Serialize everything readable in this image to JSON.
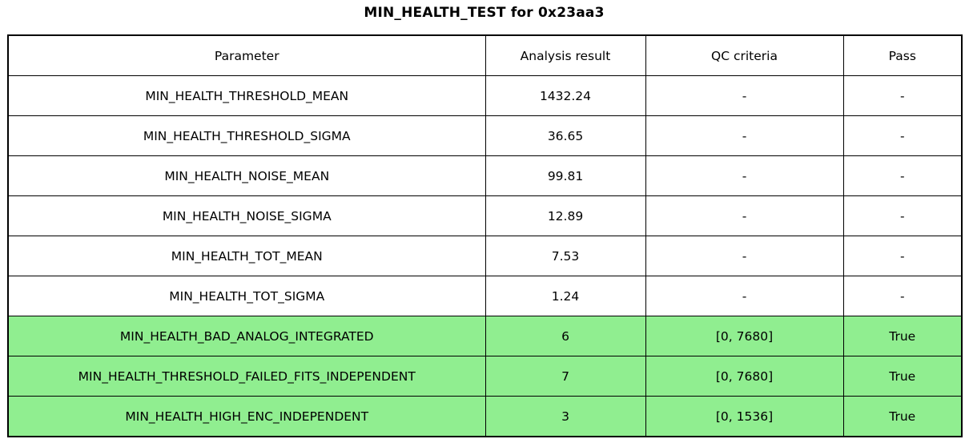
{
  "title": "MIN_HEALTH_TEST for 0x23aa3",
  "table": {
    "headers": [
      "Parameter",
      "Analysis result",
      "QC criteria",
      "Pass"
    ],
    "rows": [
      {
        "parameter": "MIN_HEALTH_THRESHOLD_MEAN",
        "result": "1432.24",
        "qc": "-",
        "pass": "-",
        "highlight": false
      },
      {
        "parameter": "MIN_HEALTH_THRESHOLD_SIGMA",
        "result": "36.65",
        "qc": "-",
        "pass": "-",
        "highlight": false
      },
      {
        "parameter": "MIN_HEALTH_NOISE_MEAN",
        "result": "99.81",
        "qc": "-",
        "pass": "-",
        "highlight": false
      },
      {
        "parameter": "MIN_HEALTH_NOISE_SIGMA",
        "result": "12.89",
        "qc": "-",
        "pass": "-",
        "highlight": false
      },
      {
        "parameter": "MIN_HEALTH_TOT_MEAN",
        "result": "7.53",
        "qc": "-",
        "pass": "-",
        "highlight": false
      },
      {
        "parameter": "MIN_HEALTH_TOT_SIGMA",
        "result": "1.24",
        "qc": "-",
        "pass": "-",
        "highlight": false
      },
      {
        "parameter": "MIN_HEALTH_BAD_ANALOG_INTEGRATED",
        "result": "6",
        "qc": "[0, 7680]",
        "pass": "True",
        "highlight": true
      },
      {
        "parameter": "MIN_HEALTH_THRESHOLD_FAILED_FITS_INDEPENDENT",
        "result": "7",
        "qc": "[0, 7680]",
        "pass": "True",
        "highlight": true
      },
      {
        "parameter": "MIN_HEALTH_HIGH_ENC_INDEPENDENT",
        "result": "3",
        "qc": "[0, 1536]",
        "pass": "True",
        "highlight": true
      }
    ]
  },
  "colors": {
    "pass_highlight": "#90EE90",
    "border": "#000000",
    "background": "#FFFFFF"
  },
  "chart_data": {
    "type": "table",
    "title": "MIN_HEALTH_TEST for 0x23aa3",
    "columns": [
      "Parameter",
      "Analysis result",
      "QC criteria",
      "Pass"
    ],
    "rows": [
      [
        "MIN_HEALTH_THRESHOLD_MEAN",
        "1432.24",
        "-",
        "-"
      ],
      [
        "MIN_HEALTH_THRESHOLD_SIGMA",
        "36.65",
        "-",
        "-"
      ],
      [
        "MIN_HEALTH_NOISE_MEAN",
        "99.81",
        "-",
        "-"
      ],
      [
        "MIN_HEALTH_NOISE_SIGMA",
        "12.89",
        "-",
        "-"
      ],
      [
        "MIN_HEALTH_TOT_MEAN",
        "7.53",
        "-",
        "-"
      ],
      [
        "MIN_HEALTH_TOT_SIGMA",
        "1.24",
        "-",
        "-"
      ],
      [
        "MIN_HEALTH_BAD_ANALOG_INTEGRATED",
        "6",
        "[0, 7680]",
        "True"
      ],
      [
        "MIN_HEALTH_THRESHOLD_FAILED_FITS_INDEPENDENT",
        "7",
        "[0, 7680]",
        "True"
      ],
      [
        "MIN_HEALTH_HIGH_ENC_INDEPENDENT",
        "3",
        "[0, 1536]",
        "True"
      ]
    ],
    "highlighted_rows": [
      6,
      7,
      8
    ],
    "highlight_color": "#90EE90",
    "legend_position": "none",
    "grid": true
  }
}
